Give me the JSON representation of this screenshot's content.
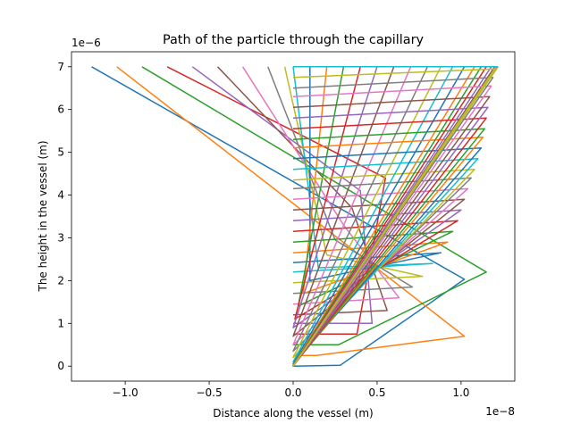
{
  "chart_data": {
    "type": "line",
    "title": "Path of the particle through the capillary",
    "xlabel": "Distance along the vessel (m)",
    "ylabel": "The height in the vessel (m)",
    "x_offset_label": "1e−8",
    "y_offset_label": "1e−6",
    "xlim": [
      -1.32e-08,
      1.32e-08
    ],
    "ylim": [
      -3.5e-07,
      7.35e-06
    ],
    "x_ticks": [
      -1e-08,
      -5e-09,
      0.0,
      5e-09,
      1e-08
    ],
    "x_tick_labels": [
      "−1.0",
      "−0.5",
      "0.0",
      "0.5",
      "1.0"
    ],
    "y_ticks": [
      0,
      1e-06,
      2e-06,
      3e-06,
      4e-06,
      5e-06,
      6e-06,
      7e-06
    ],
    "y_tick_labels": [
      "0",
      "1",
      "2",
      "3",
      "4",
      "5",
      "6",
      "7"
    ],
    "grid": false,
    "legend": "none",
    "colors": [
      "#1f77b4",
      "#ff7f0e",
      "#2ca02c",
      "#d62728",
      "#9467bd",
      "#8c564b",
      "#e377c2",
      "#7f7f7f",
      "#bcbd22",
      "#17becf"
    ],
    "series": [
      {
        "x": [
          0.0,
          2.8e-09,
          1.02e-08,
          -1.2e-08
        ],
        "y": [
          0.0,
          2e-08,
          2.03e-06,
          7e-06
        ]
      },
      {
        "x": [
          0.0,
          1.4e-09,
          1.02e-08,
          -1.05e-08
        ],
        "y": [
          2.5e-07,
          2.5e-07,
          7e-07,
          7e-06
        ]
      },
      {
        "x": [
          0.0,
          2.7e-09,
          1.15e-08,
          -9e-09
        ],
        "y": [
          5e-07,
          5e-07,
          2.2e-06,
          7e-06
        ]
      },
      {
        "x": [
          0.0,
          3.8e-09,
          5.5e-09,
          -7.5e-09
        ],
        "y": [
          7.5e-07,
          7.5e-07,
          4.4e-06,
          7e-06
        ]
      },
      {
        "x": [
          0.0,
          4.7e-09,
          4e-09,
          -6e-09
        ],
        "y": [
          1e-06,
          1e-06,
          4.1e-06,
          7e-06
        ]
      },
      {
        "x": [
          0.0,
          5.6e-09,
          3.5e-09,
          -4.5e-09
        ],
        "y": [
          1.2e-06,
          1.3e-06,
          3.7e-06,
          7e-06
        ]
      },
      {
        "x": [
          0.0,
          6.3e-09,
          3e-09,
          -3e-09
        ],
        "y": [
          1.45e-06,
          1.6e-06,
          3.3e-06,
          7e-06
        ]
      },
      {
        "x": [
          0.0,
          7.1e-09,
          2.5e-09,
          -1.5e-09
        ],
        "y": [
          1.7e-06,
          1.85e-06,
          2.95e-06,
          7e-06
        ]
      },
      {
        "x": [
          0.0,
          7.7e-09,
          2e-09,
          -5e-10
        ],
        "y": [
          1.95e-06,
          2.1e-06,
          2.6e-06,
          7e-06
        ]
      },
      {
        "x": [
          0.0,
          8.3e-09,
          1.5e-09,
          0.0
        ],
        "y": [
          2.2e-06,
          2.4e-06,
          2.3e-06,
          7e-06
        ]
      },
      {
        "x": [
          0.0,
          8.8e-09,
          1e-09,
          1e-09
        ],
        "y": [
          2.42e-06,
          2.65e-06,
          2e-06,
          7e-06
        ]
      },
      {
        "x": [
          0.0,
          9.2e-09,
          6e-10,
          2e-09
        ],
        "y": [
          2.65e-06,
          2.9e-06,
          1.7e-06,
          7e-06
        ]
      },
      {
        "x": [
          0.0,
          9.5e-09,
          3e-10,
          3e-09
        ],
        "y": [
          2.9e-06,
          3.15e-06,
          1.4e-06,
          7e-06
        ]
      },
      {
        "x": [
          0.0,
          9.8e-09,
          1e-10,
          4e-09
        ],
        "y": [
          3.15e-06,
          3.4e-06,
          1.1e-06,
          7e-06
        ]
      },
      {
        "x": [
          0.0,
          1e-08,
          0.0,
          5e-09
        ],
        "y": [
          3.4e-06,
          3.65e-06,
          9e-07,
          7e-06
        ]
      },
      {
        "x": [
          0.0,
          1.02e-08,
          0.0,
          6e-09
        ],
        "y": [
          3.65e-06,
          3.9e-06,
          7e-07,
          7e-06
        ]
      },
      {
        "x": [
          0.0,
          1.04e-08,
          0.0,
          7e-09
        ],
        "y": [
          3.9e-06,
          4.15e-06,
          5e-07,
          7e-06
        ]
      },
      {
        "x": [
          0.0,
          1.06e-08,
          0.0,
          8e-09
        ],
        "y": [
          4.15e-06,
          4.4e-06,
          3.5e-07,
          7e-06
        ]
      },
      {
        "x": [
          0.0,
          1.08e-08,
          0.0,
          8.8e-09
        ],
        "y": [
          4.35e-06,
          4.6e-06,
          2e-07,
          7e-06
        ]
      },
      {
        "x": [
          0.0,
          1.1e-08,
          0.0,
          9.5e-09
        ],
        "y": [
          4.6e-06,
          4.85e-06,
          1e-07,
          7e-06
        ]
      },
      {
        "x": [
          0.0,
          1.12e-08,
          0.0,
          1.02e-08
        ],
        "y": [
          4.85e-06,
          5.1e-06,
          5e-08,
          7e-06
        ]
      },
      {
        "x": [
          0.0,
          1.13e-08,
          0.0,
          1.08e-08
        ],
        "y": [
          5.1e-06,
          5.35e-06,
          2e-08,
          7e-06
        ]
      },
      {
        "x": [
          0.0,
          1.14e-08,
          0.0,
          1.12e-08
        ],
        "y": [
          5.3e-06,
          5.55e-06,
          1e-08,
          7e-06
        ]
      },
      {
        "x": [
          0.0,
          1.15e-08,
          0.0,
          1.15e-08
        ],
        "y": [
          5.55e-06,
          5.8e-06,
          0.0,
          7e-06
        ]
      },
      {
        "x": [
          0.0,
          1.16e-08,
          0.0,
          1.18e-08
        ],
        "y": [
          5.8e-06,
          6.05e-06,
          0.0,
          7e-06
        ]
      },
      {
        "x": [
          0.0,
          1.17e-08,
          0.0,
          1.2e-08
        ],
        "y": [
          6.05e-06,
          6.3e-06,
          0.0,
          7e-06
        ]
      },
      {
        "x": [
          0.0,
          1.18e-08,
          0.0,
          1.21e-08
        ],
        "y": [
          6.3e-06,
          6.55e-06,
          0.0,
          7e-06
        ]
      },
      {
        "x": [
          0.0,
          1.19e-08,
          0.0,
          1.22e-08
        ],
        "y": [
          6.5e-06,
          6.75e-06,
          0.0,
          7e-06
        ]
      },
      {
        "x": [
          0.0,
          1.2e-08,
          0.0,
          1.22e-08
        ],
        "y": [
          6.75e-06,
          6.95e-06,
          0.0,
          7e-06
        ]
      },
      {
        "x": [
          0.0,
          1.21e-08,
          1.22e-08
        ],
        "y": [
          7e-06,
          7e-06,
          7e-06
        ]
      }
    ]
  }
}
